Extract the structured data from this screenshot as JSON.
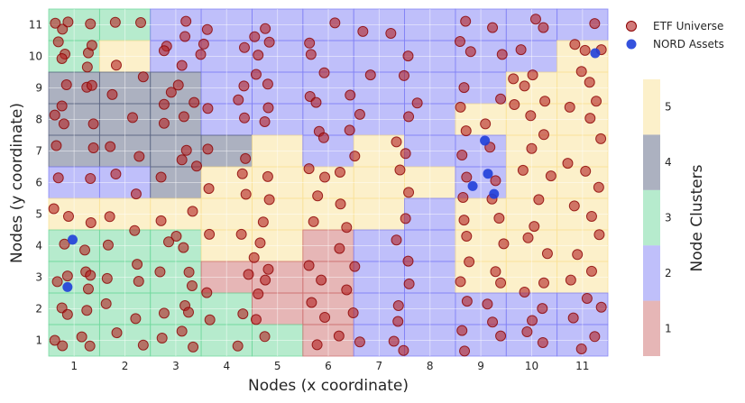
{
  "chart_data": {
    "type": "scatter",
    "title": "",
    "xlabel": "Nodes (x coordinate)",
    "ylabel": "Nodes (y coordinate)",
    "xlim": [
      0.5,
      11.5
    ],
    "ylim": [
      0.5,
      11.5
    ],
    "x_ticks": [
      "1",
      "2",
      "3",
      "4",
      "5",
      "6",
      "7",
      "8",
      "9",
      "10",
      "11"
    ],
    "y_ticks": [
      "1",
      "2",
      "3",
      "4",
      "5",
      "6",
      "7",
      "8",
      "9",
      "10",
      "11"
    ],
    "grid": true,
    "legend_position": "top-right",
    "cluster_colors": {
      "1": "#cd6e6e",
      "2": "#8080f5",
      "3": "#6ed79b",
      "4": "#5a6482",
      "5": "#fae196"
    },
    "cluster_grid_rows_top_to_bottom": [
      [
        3,
        3,
        2,
        2,
        2,
        2,
        2,
        2,
        2,
        2,
        2
      ],
      [
        3,
        5,
        2,
        2,
        2,
        2,
        2,
        2,
        2,
        2,
        5
      ],
      [
        4,
        4,
        4,
        2,
        2,
        2,
        2,
        2,
        2,
        5,
        5
      ],
      [
        4,
        4,
        4,
        2,
        2,
        2,
        2,
        2,
        5,
        5,
        5
      ],
      [
        4,
        4,
        4,
        4,
        5,
        2,
        5,
        2,
        2,
        5,
        5
      ],
      [
        2,
        2,
        4,
        5,
        5,
        5,
        5,
        5,
        2,
        5,
        5
      ],
      [
        5,
        5,
        5,
        5,
        5,
        5,
        5,
        2,
        5,
        5,
        5
      ],
      [
        3,
        3,
        3,
        5,
        5,
        1,
        2,
        2,
        5,
        5,
        5
      ],
      [
        3,
        3,
        3,
        1,
        1,
        1,
        2,
        2,
        5,
        5,
        5
      ],
      [
        3,
        3,
        3,
        3,
        1,
        1,
        2,
        2,
        2,
        2,
        2
      ],
      [
        3,
        3,
        3,
        3,
        3,
        1,
        2,
        2,
        2,
        2,
        2
      ]
    ],
    "colorbar": {
      "label": "Node Clusters",
      "ticks": [
        "1",
        "2",
        "3",
        "4",
        "5"
      ]
    },
    "series": [
      {
        "name": "ETF Universe",
        "color": "#b22222",
        "points": [
          [
            0.63,
            11.05
          ],
          [
            0.77,
            10.86
          ],
          [
            0.88,
            11.09
          ],
          [
            1.32,
            11.03
          ],
          [
            0.82,
            10.07
          ],
          [
            1.28,
            10.11
          ],
          [
            0.69,
            10.46
          ],
          [
            1.35,
            10.35
          ],
          [
            0.76,
            9.93
          ],
          [
            1.26,
            9.66
          ],
          [
            1.25,
            9.02
          ],
          [
            0.85,
            9.1
          ],
          [
            1.35,
            9.08
          ],
          [
            0.62,
            8.14
          ],
          [
            0.76,
            8.43
          ],
          [
            0.8,
            7.86
          ],
          [
            1.38,
            7.86
          ],
          [
            0.65,
            7.17
          ],
          [
            1.38,
            7.1
          ],
          [
            0.69,
            6.15
          ],
          [
            1.32,
            6.13
          ],
          [
            0.6,
            5.17
          ],
          [
            0.89,
            4.93
          ],
          [
            1.33,
            4.73
          ],
          [
            0.81,
            4.05
          ],
          [
            1.21,
            3.86
          ],
          [
            1.23,
            3.17
          ],
          [
            1.32,
            3.06
          ],
          [
            0.87,
            3.04
          ],
          [
            0.67,
            2.86
          ],
          [
            1.28,
            2.63
          ],
          [
            0.76,
            2.03
          ],
          [
            1.25,
            1.95
          ],
          [
            0.87,
            1.82
          ],
          [
            0.62,
            1.0
          ],
          [
            1.15,
            1.11
          ],
          [
            0.77,
            0.83
          ],
          [
            1.31,
            0.82
          ],
          [
            3.2,
            11.11
          ],
          [
            3.18,
            10.63
          ],
          [
            3.55,
            10.39
          ],
          [
            2.82,
            10.32
          ],
          [
            2.77,
            10.18
          ],
          [
            3.49,
            10.06
          ],
          [
            3.12,
            9.71
          ],
          [
            3.05,
            9.09
          ],
          [
            2.91,
            8.86
          ],
          [
            3.36,
            8.54
          ],
          [
            2.77,
            8.48
          ],
          [
            3.16,
            8.09
          ],
          [
            2.77,
            7.88
          ],
          [
            3.21,
            7.02
          ],
          [
            3.12,
            6.72
          ],
          [
            3.41,
            6.52
          ],
          [
            2.71,
            6.17
          ],
          [
            3.33,
            5.09
          ],
          [
            2.71,
            4.79
          ],
          [
            3.01,
            4.3
          ],
          [
            2.86,
            4.12
          ],
          [
            3.15,
            3.94
          ],
          [
            3.26,
            3.16
          ],
          [
            2.69,
            3.17
          ],
          [
            3.32,
            2.73
          ],
          [
            3.18,
            2.1
          ],
          [
            2.77,
            1.86
          ],
          [
            3.25,
            1.89
          ],
          [
            3.12,
            1.29
          ],
          [
            2.73,
            1.07
          ],
          [
            3.34,
            0.79
          ],
          [
            4.76,
            10.88
          ],
          [
            4.55,
            10.62
          ],
          [
            4.84,
            10.45
          ],
          [
            4.35,
            10.28
          ],
          [
            4.62,
            10.04
          ],
          [
            4.34,
            9.06
          ],
          [
            4.81,
            9.12
          ],
          [
            4.58,
            9.43
          ],
          [
            4.23,
            8.62
          ],
          [
            4.82,
            8.37
          ],
          [
            4.35,
            8.05
          ],
          [
            4.75,
            7.93
          ],
          [
            4.37,
            6.76
          ],
          [
            4.31,
            6.28
          ],
          [
            4.81,
            6.19
          ],
          [
            4.38,
            5.63
          ],
          [
            4.84,
            5.46
          ],
          [
            4.72,
            4.75
          ],
          [
            4.29,
            4.36
          ],
          [
            4.66,
            4.09
          ],
          [
            4.54,
            3.62
          ],
          [
            4.82,
            3.25
          ],
          [
            4.43,
            3.09
          ],
          [
            4.76,
            2.91
          ],
          [
            4.62,
            2.47
          ],
          [
            4.58,
            1.66
          ],
          [
            4.32,
            1.84
          ],
          [
            4.75,
            1.12
          ],
          [
            4.22,
            0.82
          ],
          [
            5.63,
            10.42
          ],
          [
            5.66,
            10.06
          ],
          [
            5.92,
            9.48
          ],
          [
            5.64,
            8.73
          ],
          [
            5.76,
            8.54
          ],
          [
            5.82,
            7.62
          ],
          [
            5.91,
            7.42
          ],
          [
            5.62,
            6.44
          ],
          [
            5.93,
            6.17
          ],
          [
            5.79,
            5.58
          ],
          [
            5.71,
            4.76
          ],
          [
            5.62,
            3.37
          ],
          [
            5.86,
            2.91
          ],
          [
            5.67,
            2.2
          ],
          [
            5.93,
            1.73
          ],
          [
            5.78,
            0.86
          ],
          [
            8.7,
            11.11
          ],
          [
            8.59,
            10.47
          ],
          [
            8.8,
            10.15
          ],
          [
            8.67,
            9.01
          ],
          [
            8.6,
            8.39
          ],
          [
            8.71,
            7.64
          ],
          [
            8.63,
            6.87
          ],
          [
            8.72,
            6.17
          ],
          [
            8.65,
            5.53
          ],
          [
            8.67,
            4.81
          ],
          [
            8.72,
            4.3
          ],
          [
            8.77,
            3.49
          ],
          [
            8.6,
            2.86
          ],
          [
            8.73,
            2.24
          ],
          [
            8.63,
            1.31
          ],
          [
            8.68,
            0.66
          ],
          [
            7.23,
            10.73
          ],
          [
            7.57,
            10.01
          ],
          [
            7.49,
            9.39
          ],
          [
            7.75,
            8.52
          ],
          [
            7.58,
            8.09
          ],
          [
            7.34,
            7.29
          ],
          [
            7.52,
            6.92
          ],
          [
            7.41,
            6.4
          ],
          [
            7.58,
            5.69
          ],
          [
            7.52,
            4.86
          ],
          [
            7.34,
            4.18
          ],
          [
            7.57,
            3.51
          ],
          [
            7.59,
            2.79
          ],
          [
            7.38,
            2.1
          ],
          [
            7.37,
            1.6
          ],
          [
            7.29,
            0.97
          ],
          [
            7.48,
            0.68
          ],
          [
            6.13,
            11.06
          ],
          [
            6.68,
            10.79
          ],
          [
            6.83,
            9.41
          ],
          [
            6.43,
            8.77
          ],
          [
            6.62,
            8.16
          ],
          [
            6.42,
            7.66
          ],
          [
            6.52,
            6.84
          ],
          [
            6.23,
            6.33
          ],
          [
            6.24,
            5.32
          ],
          [
            6.36,
            4.58
          ],
          [
            6.22,
            3.91
          ],
          [
            6.52,
            3.34
          ],
          [
            6.36,
            2.6
          ],
          [
            6.49,
            1.87
          ],
          [
            6.21,
            1.14
          ],
          [
            6.62,
            0.95
          ],
          [
            9.23,
            10.91
          ],
          [
            9.42,
            10.06
          ],
          [
            9.64,
            9.29
          ],
          [
            9.39,
            8.65
          ],
          [
            9.66,
            8.47
          ],
          [
            9.09,
            7.86
          ],
          [
            9.18,
            7.12
          ],
          [
            9.29,
            6.06
          ],
          [
            9.22,
            5.48
          ],
          [
            9.36,
            4.87
          ],
          [
            9.45,
            4.06
          ],
          [
            9.29,
            3.18
          ],
          [
            9.39,
            2.82
          ],
          [
            9.13,
            2.15
          ],
          [
            9.23,
            1.58
          ],
          [
            9.39,
            1.14
          ],
          [
            10.08,
            11.18
          ],
          [
            10.23,
            10.91
          ],
          [
            9.79,
            10.21
          ],
          [
            10.02,
            9.41
          ],
          [
            9.86,
            9.06
          ],
          [
            10.26,
            8.58
          ],
          [
            9.98,
            8.12
          ],
          [
            10.24,
            7.52
          ],
          [
            10.0,
            7.08
          ],
          [
            9.83,
            6.39
          ],
          [
            10.38,
            6.21
          ],
          [
            10.14,
            5.46
          ],
          [
            10.05,
            4.61
          ],
          [
            9.93,
            4.25
          ],
          [
            10.31,
            3.75
          ],
          [
            10.24,
            2.82
          ],
          [
            9.86,
            2.53
          ],
          [
            10.21,
            2.01
          ],
          [
            10.01,
            1.63
          ],
          [
            9.91,
            1.27
          ],
          [
            10.22,
            0.93
          ],
          [
            11.24,
            11.04
          ],
          [
            10.85,
            10.38
          ],
          [
            11.05,
            10.19
          ],
          [
            11.37,
            10.21
          ],
          [
            10.98,
            9.52
          ],
          [
            11.14,
            9.18
          ],
          [
            11.27,
            8.58
          ],
          [
            10.75,
            8.39
          ],
          [
            11.15,
            8.04
          ],
          [
            11.36,
            7.39
          ],
          [
            10.71,
            6.61
          ],
          [
            11.06,
            6.36
          ],
          [
            11.32,
            5.85
          ],
          [
            10.84,
            5.26
          ],
          [
            11.18,
            4.93
          ],
          [
            11.33,
            4.35
          ],
          [
            10.9,
            3.72
          ],
          [
            11.18,
            3.19
          ],
          [
            10.77,
            2.91
          ],
          [
            11.09,
            2.33
          ],
          [
            11.37,
            2.05
          ],
          [
            10.82,
            1.71
          ],
          [
            11.24,
            1.12
          ],
          [
            10.98,
            0.73
          ],
          [
            1.81,
            11.08
          ],
          [
            2.31,
            11.07
          ],
          [
            1.83,
            9.72
          ],
          [
            2.36,
            9.35
          ],
          [
            1.75,
            8.79
          ],
          [
            2.15,
            8.06
          ],
          [
            1.71,
            7.14
          ],
          [
            2.28,
            6.83
          ],
          [
            1.82,
            6.27
          ],
          [
            2.22,
            5.64
          ],
          [
            1.7,
            4.92
          ],
          [
            2.19,
            4.48
          ],
          [
            1.67,
            4.02
          ],
          [
            2.24,
            3.41
          ],
          [
            1.65,
            2.96
          ],
          [
            2.27,
            2.87
          ],
          [
            1.63,
            2.16
          ],
          [
            2.21,
            1.69
          ],
          [
            1.84,
            1.24
          ],
          [
            2.36,
            0.85
          ],
          [
            3.62,
            10.85
          ],
          [
            3.63,
            8.35
          ],
          [
            3.63,
            7.06
          ],
          [
            3.65,
            5.81
          ],
          [
            3.66,
            4.36
          ],
          [
            3.61,
            2.51
          ],
          [
            3.67,
            1.65
          ]
        ]
      },
      {
        "name": "NORD Assets",
        "color": "#1f3fd9",
        "points": [
          [
            0.97,
            4.19
          ],
          [
            0.87,
            2.69
          ],
          [
            9.08,
            7.33
          ],
          [
            9.14,
            6.28
          ],
          [
            8.84,
            5.89
          ],
          [
            9.26,
            5.64
          ],
          [
            11.25,
            10.1
          ]
        ]
      }
    ]
  }
}
